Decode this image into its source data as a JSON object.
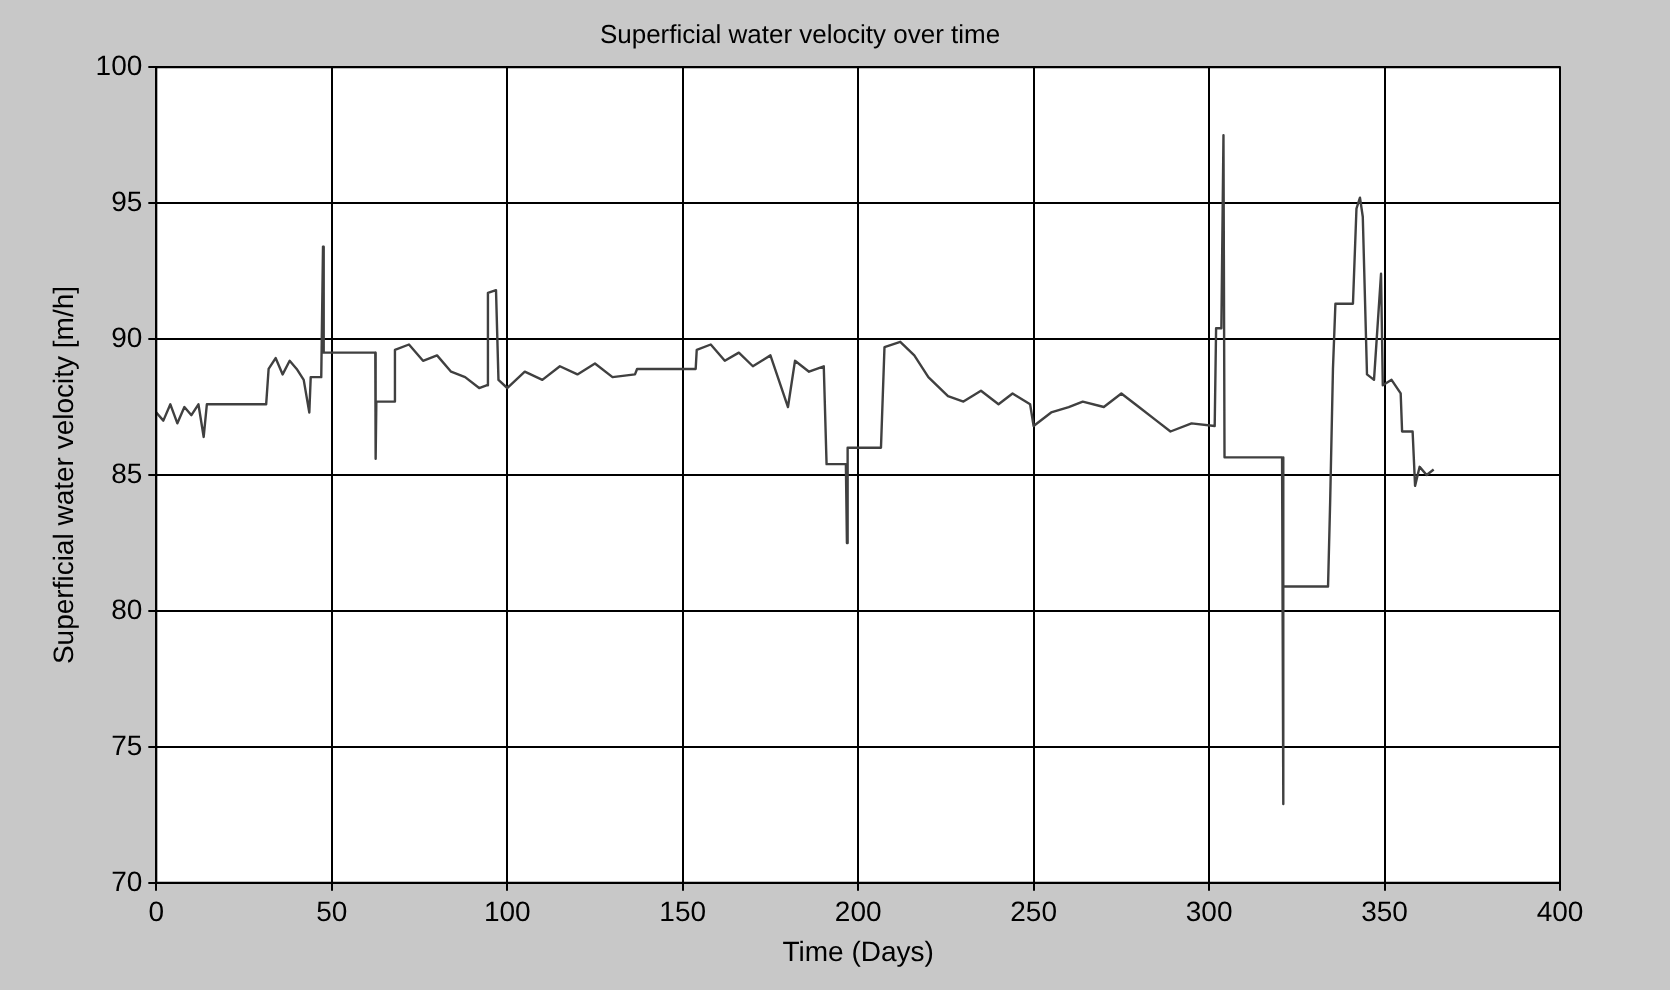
{
  "chart_data": {
    "type": "line",
    "title": "Superficial water velocity over time",
    "xlabel": "Time (Days)",
    "ylabel": "Superficial water velocity [m/h]",
    "xlim": [
      0,
      400
    ],
    "xticks": [
      0,
      50,
      100,
      150,
      200,
      250,
      300,
      350,
      400
    ],
    "ylim": [
      70,
      100
    ],
    "yticks": [
      70,
      75,
      80,
      85,
      90,
      95,
      100
    ],
    "grid": true,
    "legend": false,
    "marker": "none",
    "line_style": "solid",
    "series": [
      {
        "color": "#404040",
        "x": [
          0,
          2,
          4,
          6,
          8,
          10,
          12,
          13.5,
          14.4,
          31.3,
          32,
          34,
          36,
          38,
          40,
          42,
          43.6,
          44,
          47,
          47.5,
          47.7,
          62.4,
          62.5,
          62.7,
          67.8,
          68,
          72,
          76,
          80,
          84,
          88,
          92,
          94.1,
          94.5,
          96.8,
          97.5,
          100,
          105,
          110,
          115,
          120,
          125,
          130,
          136.4,
          137,
          153.7,
          154,
          158,
          162,
          166,
          170,
          175,
          180,
          182,
          186,
          190.2,
          191,
          196.5,
          196.8,
          197,
          206.5,
          207.5,
          212,
          216,
          220,
          225.6,
          230,
          235,
          240,
          244,
          249,
          250,
          255,
          260,
          264,
          270,
          275,
          280,
          285,
          289,
          295,
          301.6,
          302,
          303.5,
          304.1,
          304.4,
          320.8,
          321,
          321.3,
          333.9,
          334.5,
          335.3,
          336,
          341,
          342,
          343,
          343.8,
          345,
          347,
          349,
          349.5,
          352,
          354.6,
          355,
          358,
          358.7,
          360,
          362,
          364
        ],
        "values": [
          87.3,
          87.0,
          87.6,
          86.9,
          87.5,
          87.2,
          87.6,
          86.4,
          87.6,
          87.6,
          88.9,
          89.3,
          88.7,
          89.2,
          88.9,
          88.5,
          87.3,
          88.6,
          88.6,
          93.4,
          89.5,
          89.5,
          85.6,
          87.7,
          87.7,
          89.6,
          89.8,
          89.2,
          89.4,
          88.8,
          88.6,
          88.2,
          88.3,
          91.7,
          91.8,
          88.5,
          88.2,
          88.8,
          88.5,
          89.0,
          88.7,
          89.1,
          88.6,
          88.7,
          88.9,
          88.9,
          89.6,
          89.8,
          89.2,
          89.5,
          89.0,
          89.4,
          87.5,
          89.2,
          88.8,
          89.0,
          85.4,
          85.4,
          82.5,
          86.0,
          86.0,
          89.7,
          89.9,
          89.4,
          88.6,
          87.9,
          87.7,
          88.1,
          87.6,
          88.0,
          87.6,
          86.8,
          87.3,
          87.5,
          87.7,
          87.5,
          88.0,
          87.5,
          87.0,
          86.6,
          86.9,
          86.8,
          90.4,
          90.4,
          97.5,
          85.65,
          85.65,
          72.9,
          80.9,
          80.9,
          84,
          88.9,
          91.3,
          91.3,
          94.8,
          95.2,
          94.5,
          88.7,
          88.5,
          92.4,
          88.3,
          88.5,
          88.0,
          86.6,
          86.6,
          84.6,
          85.3,
          85.0,
          85.2
        ]
      }
    ]
  }
}
